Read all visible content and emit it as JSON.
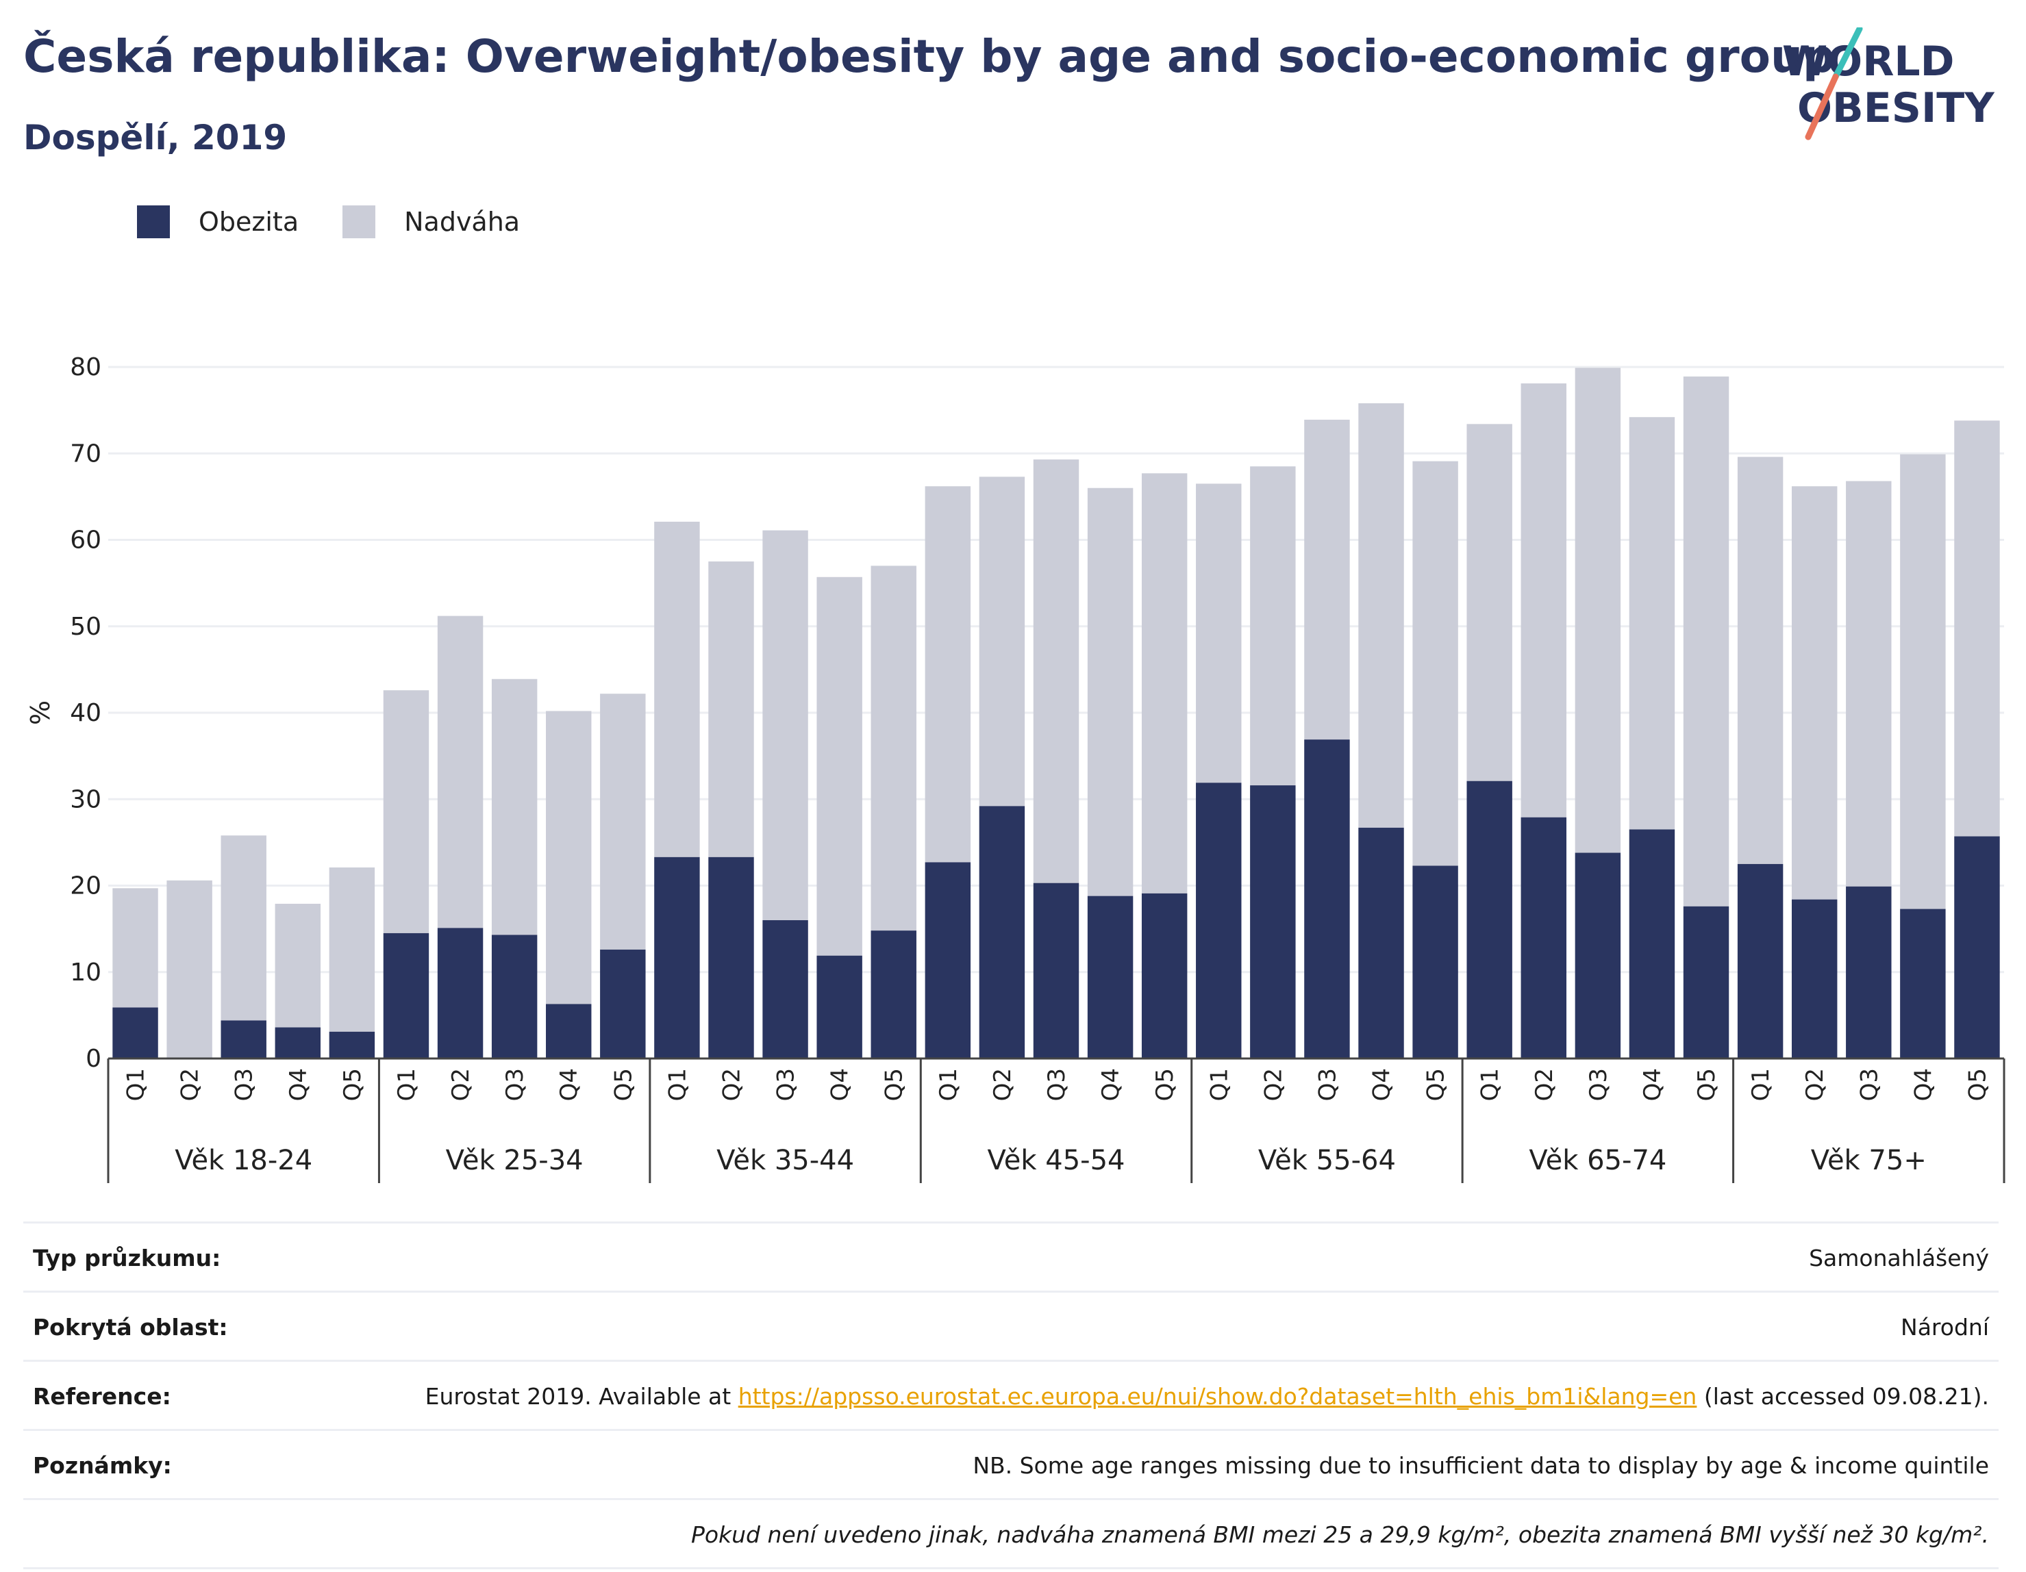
{
  "header": {
    "title": "Česká republika: Overweight/obesity by age and socio-economic group",
    "subtitle": "Dospělí, 2019"
  },
  "logo": {
    "line1": "WORLD",
    "line2": "OBESITY",
    "colors": {
      "text": "#2a3560",
      "slash_teal": "#3bbfb9",
      "slash_coral": "#e8735a"
    }
  },
  "chart_data": {
    "type": "bar",
    "stacked": true,
    "ylabel": "%",
    "ylim": [
      0,
      80
    ],
    "yticks": [
      0,
      10,
      20,
      30,
      40,
      50,
      60,
      70,
      80
    ],
    "grid": true,
    "legend_position": "top-left",
    "colors": {
      "Obezita": "#2a3560",
      "Nadváha": "#cbcdd8"
    },
    "groups": [
      {
        "label": "Věk 18-24",
        "categories": [
          "Q1",
          "Q2",
          "Q3",
          "Q4",
          "Q5"
        ],
        "obezita": [
          5.9,
          0,
          4.4,
          3.6,
          3.1
        ],
        "total": [
          19.7,
          20.6,
          25.8,
          17.9,
          22.1
        ]
      },
      {
        "label": "Věk 25-34",
        "categories": [
          "Q1",
          "Q2",
          "Q3",
          "Q4",
          "Q5"
        ],
        "obezita": [
          14.5,
          15.1,
          14.3,
          6.3,
          12.6
        ],
        "total": [
          42.6,
          51.2,
          43.9,
          40.2,
          42.2
        ]
      },
      {
        "label": "Věk 35-44",
        "categories": [
          "Q1",
          "Q2",
          "Q3",
          "Q4",
          "Q5"
        ],
        "obezita": [
          23.3,
          23.3,
          16.0,
          11.9,
          14.8
        ],
        "total": [
          62.1,
          57.5,
          61.1,
          55.7,
          57.0
        ]
      },
      {
        "label": "Věk 45-54",
        "categories": [
          "Q1",
          "Q2",
          "Q3",
          "Q4",
          "Q5"
        ],
        "obezita": [
          22.7,
          29.2,
          20.3,
          18.8,
          19.1
        ],
        "total": [
          66.2,
          67.3,
          69.3,
          66.0,
          67.7
        ]
      },
      {
        "label": "Věk 55-64",
        "categories": [
          "Q1",
          "Q2",
          "Q3",
          "Q4",
          "Q5"
        ],
        "obezita": [
          31.9,
          31.6,
          36.9,
          26.7,
          22.3
        ],
        "total": [
          66.5,
          68.5,
          73.9,
          75.8,
          69.1
        ]
      },
      {
        "label": "Věk 65-74",
        "categories": [
          "Q1",
          "Q2",
          "Q3",
          "Q4",
          "Q5"
        ],
        "obezita": [
          32.1,
          27.9,
          23.8,
          26.5,
          17.6
        ],
        "total": [
          73.4,
          78.1,
          79.9,
          74.2,
          78.9
        ]
      },
      {
        "label": "Věk 75+",
        "categories": [
          "Q1",
          "Q2",
          "Q3",
          "Q4",
          "Q5"
        ],
        "obezita": [
          22.5,
          18.4,
          19.9,
          17.3,
          25.7
        ],
        "total": [
          69.6,
          66.2,
          66.8,
          69.9,
          73.8
        ]
      }
    ]
  },
  "legend": {
    "items": [
      {
        "label": "Obezita",
        "color": "#2a3560"
      },
      {
        "label": "Nadváha",
        "color": "#cbcdd8"
      }
    ]
  },
  "info": {
    "survey_type": {
      "key": "Typ průzkumu:",
      "value": "Samonahlášený"
    },
    "coverage": {
      "key": "Pokrytá oblast:",
      "value": "Národní"
    },
    "reference": {
      "key": "Reference:",
      "prefix": "Eurostat 2019. Available at ",
      "link": "https://appsso.eurostat.ec.europa.eu/nui/show.do?dataset=hlth_ehis_bm1i&lang=en",
      "suffix": " (last accessed 09.08.21)."
    },
    "notes": {
      "key": "Poznámky:",
      "value": "NB. Some age ranges missing due to insufficient data to display by age & income quintile"
    },
    "footnote": "Pokud není uvedeno jinak, nadváha znamená BMI mezi 25 a 29,9 kg/m², obezita znamená BMI vyšší než 30 kg/m²."
  }
}
